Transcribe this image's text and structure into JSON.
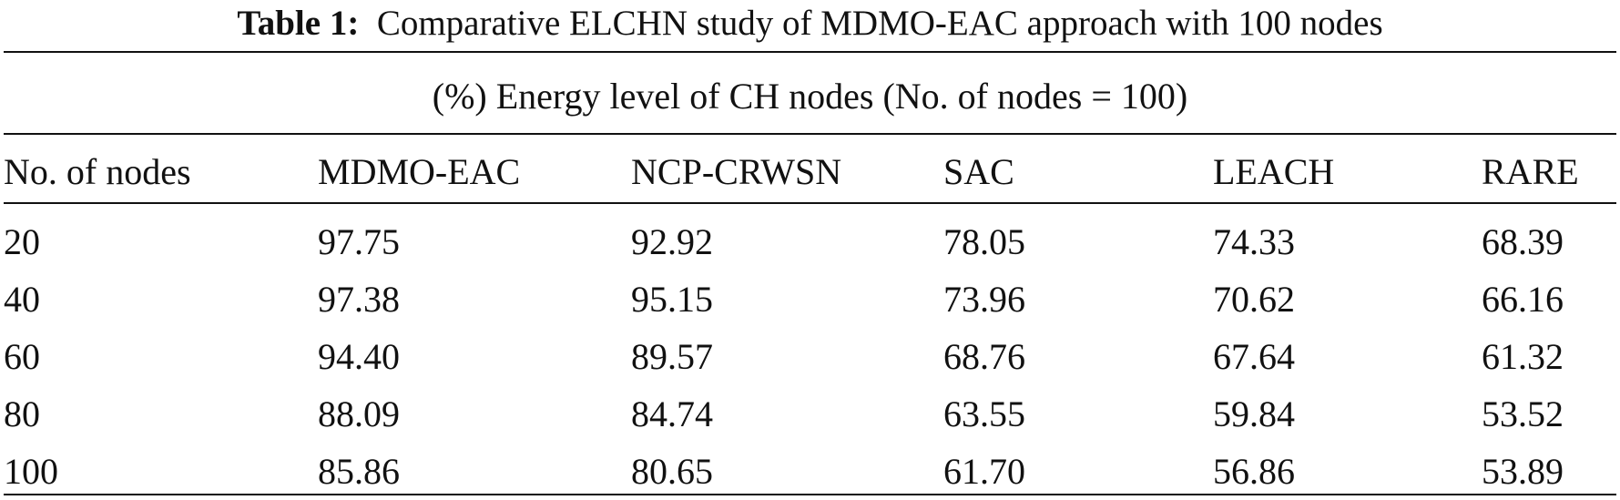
{
  "caption": {
    "label": "Table 1:",
    "text": "Comparative ELCHN study of MDMO-EAC approach with 100 nodes"
  },
  "subtitle": "(%) Energy level of CH nodes (No. of nodes = 100)",
  "table": {
    "headers": [
      "No. of nodes",
      "MDMO-EAC",
      "NCP-CRWSN",
      "SAC",
      "LEACH",
      "RARE"
    ],
    "rows": [
      [
        "20",
        "97.75",
        "92.92",
        "78.05",
        "74.33",
        "68.39"
      ],
      [
        "40",
        "97.38",
        "95.15",
        "73.96",
        "70.62",
        "66.16"
      ],
      [
        "60",
        "94.40",
        "89.57",
        "68.76",
        "67.64",
        "61.32"
      ],
      [
        "80",
        "88.09",
        "84.74",
        "63.55",
        "59.84",
        "53.52"
      ],
      [
        "100",
        "85.86",
        "80.65",
        "61.70",
        "56.86",
        "53.89"
      ]
    ]
  }
}
